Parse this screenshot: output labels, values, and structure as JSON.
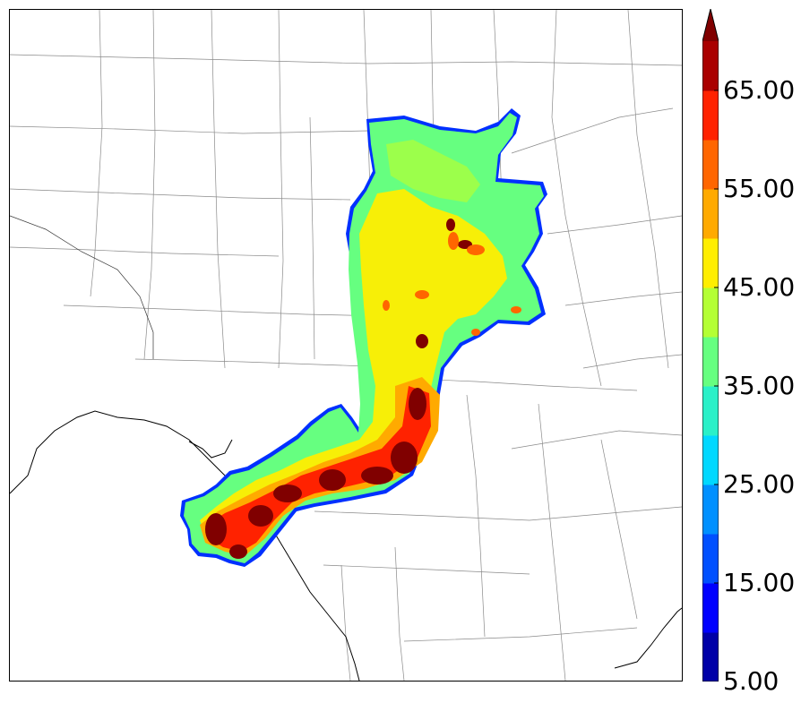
{
  "colorbar": {
    "tick_labels": [
      "5.00",
      "15.00",
      "25.00",
      "35.00",
      "45.00",
      "55.00",
      "65.00"
    ],
    "levels": [
      5,
      10,
      15,
      20,
      25,
      30,
      35,
      40,
      45,
      50,
      55,
      60,
      65,
      70
    ],
    "colors": [
      "#0000a8",
      "#0000ff",
      "#0050ff",
      "#0090ff",
      "#00d8ff",
      "#2af0c8",
      "#66ff80",
      "#b4ff34",
      "#ffee00",
      "#ffaa00",
      "#ff6600",
      "#ff2200",
      "#aa0000",
      "#800000"
    ],
    "extend": "max"
  },
  "map": {
    "background": "#ffffff",
    "boundary_color": "#808080",
    "coast_color": "#000000"
  }
}
